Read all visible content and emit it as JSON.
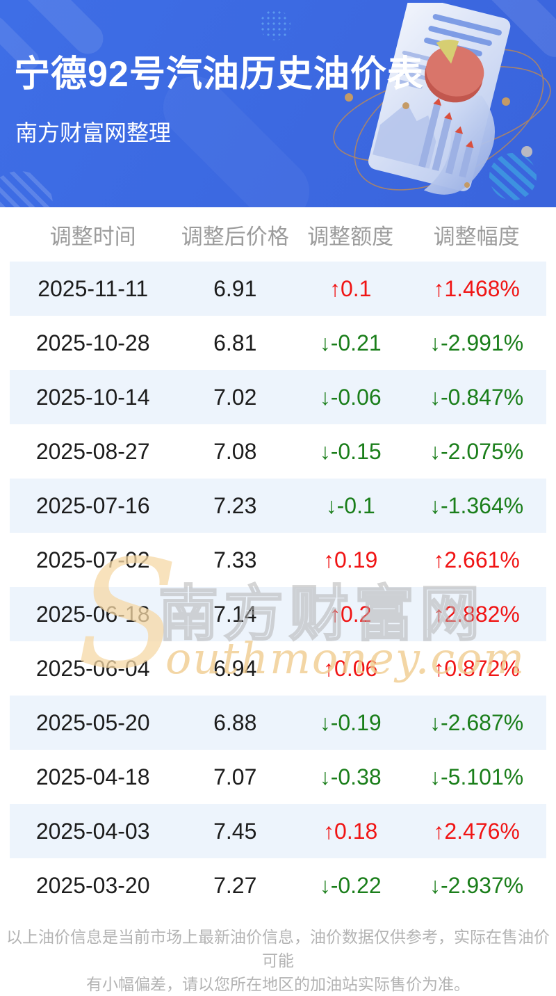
{
  "hero": {
    "title": "宁德92号汽油历史油价表",
    "subtitle": "南方财富网整理",
    "bg_color": "#3b66dd"
  },
  "illustration": {
    "name": "document-with-charts-illustration",
    "paper_color": "#dfe7f6",
    "pie_color": "#cf6a5f",
    "pie_slice_color": "#d6ce72",
    "orbit_color": "#c08a52"
  },
  "table": {
    "headers": [
      "调整时间",
      "调整后价格",
      "调整额度",
      "调整幅度"
    ],
    "header_text_color": "#9c9c9c",
    "stripe_color": "#edf4fc",
    "up_color": "#f01414",
    "down_color": "#1a7e1a",
    "rows": [
      {
        "date": "2025-11-11",
        "price": "6.91",
        "change": "↑0.1",
        "percent": "↑1.468%",
        "direction": "up"
      },
      {
        "date": "2025-10-28",
        "price": "6.81",
        "change": "↓-0.21",
        "percent": "↓-2.991%",
        "direction": "down"
      },
      {
        "date": "2025-10-14",
        "price": "7.02",
        "change": "↓-0.06",
        "percent": "↓-0.847%",
        "direction": "down"
      },
      {
        "date": "2025-08-27",
        "price": "7.08",
        "change": "↓-0.15",
        "percent": "↓-2.075%",
        "direction": "down"
      },
      {
        "date": "2025-07-16",
        "price": "7.23",
        "change": "↓-0.1",
        "percent": "↓-1.364%",
        "direction": "down"
      },
      {
        "date": "2025-07-02",
        "price": "7.33",
        "change": "↑0.19",
        "percent": "↑2.661%",
        "direction": "up"
      },
      {
        "date": "2025-06-18",
        "price": "7.14",
        "change": "↑0.2",
        "percent": "↑2.882%",
        "direction": "up"
      },
      {
        "date": "2025-06-04",
        "price": "6.94",
        "change": "↑0.06",
        "percent": "↑0.872%",
        "direction": "up"
      },
      {
        "date": "2025-05-20",
        "price": "6.88",
        "change": "↓-0.19",
        "percent": "↓-2.687%",
        "direction": "down"
      },
      {
        "date": "2025-04-18",
        "price": "7.07",
        "change": "↓-0.38",
        "percent": "↓-5.101%",
        "direction": "down"
      },
      {
        "date": "2025-04-03",
        "price": "7.45",
        "change": "↑0.18",
        "percent": "↑2.476%",
        "direction": "up"
      },
      {
        "date": "2025-03-20",
        "price": "7.27",
        "change": "↓-0.22",
        "percent": "↓-2.937%",
        "direction": "down"
      }
    ]
  },
  "watermark": {
    "s_letter": "S",
    "cn_text": "南方财富网",
    "en_text": "outhmoney.com"
  },
  "footer": {
    "line1": "以上油价信息是当前市场上最新油价信息，油价数据仅供参考，实际在售油价可能",
    "line2": "有小幅偏差，请以您所在地区的加油站实际售价为准。"
  }
}
